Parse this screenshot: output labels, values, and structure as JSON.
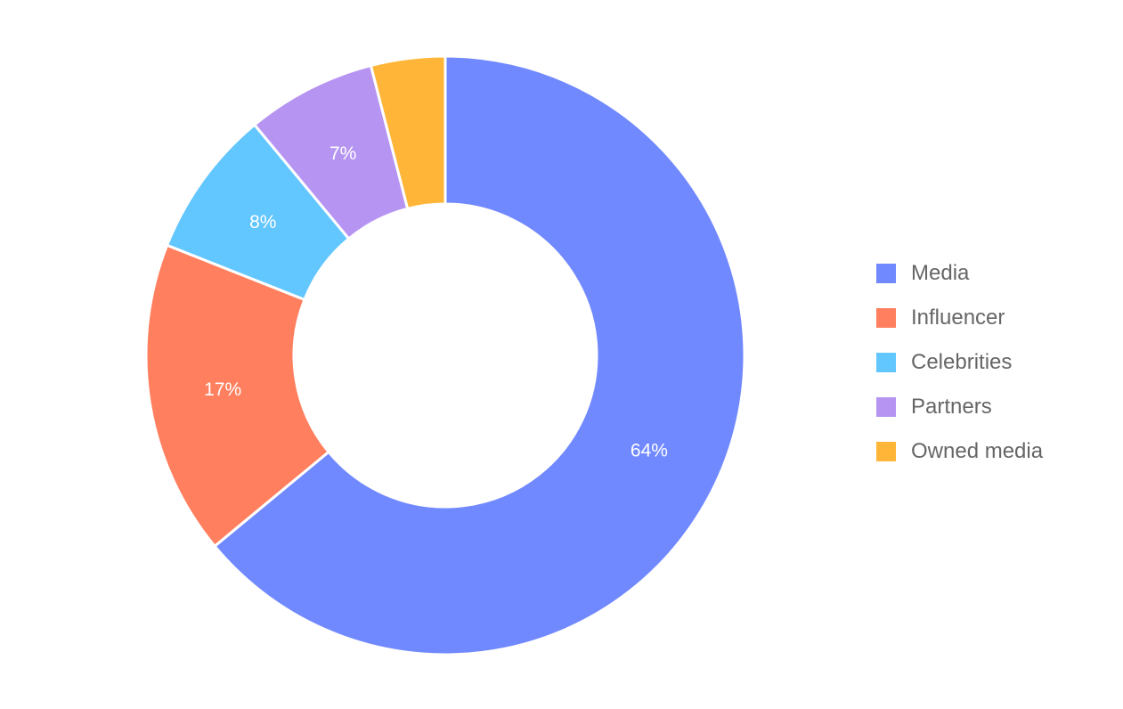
{
  "chart_data": {
    "type": "pie",
    "variant": "donut",
    "title": "",
    "categories": [
      "Media",
      "Influencer",
      "Celebrities",
      "Partners",
      "Owned media"
    ],
    "values": [
      64,
      17,
      8,
      7,
      4
    ],
    "labels": [
      "64%",
      "17%",
      "8%",
      "7%",
      ""
    ],
    "colors": [
      "#7189FF",
      "#FF7F5E",
      "#62C6FF",
      "#B695F2",
      "#FFB638"
    ],
    "legend_position": "right",
    "start_angle_deg": 0,
    "direction": "clockwise"
  },
  "legend": {
    "items": [
      {
        "label": "Media",
        "color": "#7189FF"
      },
      {
        "label": "Influencer",
        "color": "#FF7F5E"
      },
      {
        "label": "Celebrities",
        "color": "#62C6FF"
      },
      {
        "label": "Partners",
        "color": "#B695F2"
      },
      {
        "label": "Owned media",
        "color": "#FFB638"
      }
    ]
  }
}
